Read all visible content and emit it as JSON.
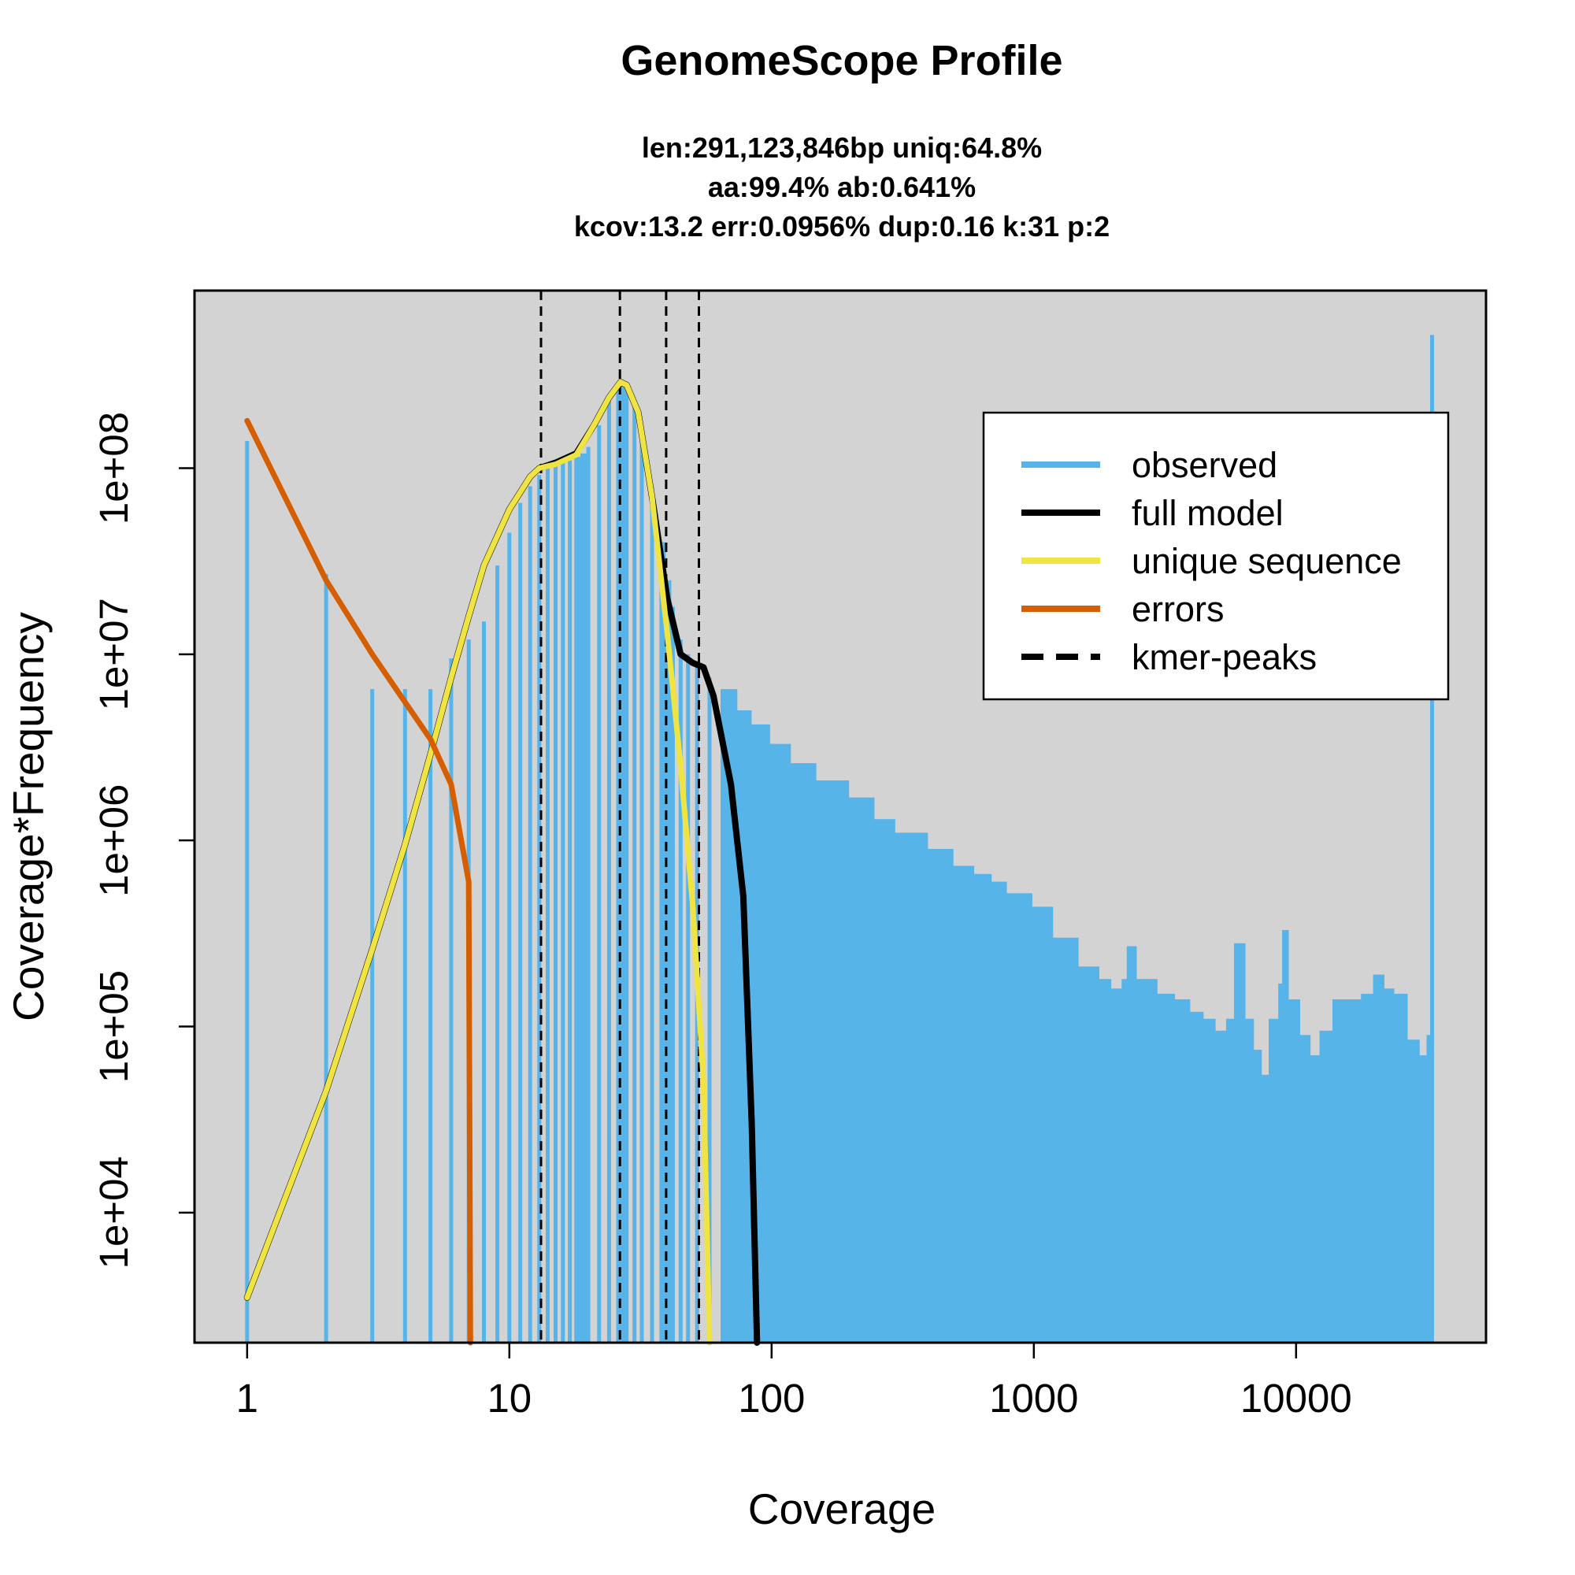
{
  "chart_data": {
    "type": "bar",
    "title": "GenomeScope Profile",
    "subtitle_lines": [
      "len:291,123,846bp uniq:64.8%",
      "aa:99.4% ab:0.641%",
      "kcov:13.2 err:0.0956%  dup:0.16  k:31 p:2"
    ],
    "xlabel": "Coverage",
    "ylabel": "Coverage*Frequency",
    "x_scale": "log",
    "y_scale": "log",
    "xlim": [
      0.63,
      53000
    ],
    "ylim": [
      2000,
      900000000
    ],
    "x_ticks": [
      1,
      10,
      100,
      1000,
      10000
    ],
    "x_tick_labels": [
      "1",
      "10",
      "100",
      "1000",
      "10000"
    ],
    "y_ticks": [
      10000,
      100000,
      1000000,
      10000000,
      100000000
    ],
    "y_tick_labels": [
      "1e+04",
      "1e+05",
      "1e+06",
      "1e+07",
      "1e+08"
    ],
    "background": "#d3d3d3",
    "grid": false,
    "legend_position": "top-right",
    "legend": [
      {
        "label": "observed",
        "color": "#56b4e9",
        "style": "solid"
      },
      {
        "label": "full model",
        "color": "#000000",
        "style": "solid"
      },
      {
        "label": "unique sequence",
        "color": "#f0e442",
        "style": "solid"
      },
      {
        "label": "errors",
        "color": "#d55e00",
        "style": "solid"
      },
      {
        "label": "kmer-peaks",
        "color": "#000000",
        "style": "dashed"
      }
    ],
    "series": [
      {
        "name": "observed",
        "type": "bar",
        "color": "#56b4e9",
        "points": [
          [
            1,
            140000000
          ],
          [
            2,
            27000000
          ],
          [
            3,
            6500000
          ],
          [
            4,
            6500000
          ],
          [
            5,
            6500000
          ],
          [
            6,
            9500000
          ],
          [
            7,
            12000000
          ],
          [
            8,
            15000000
          ],
          [
            9,
            30000000
          ],
          [
            10,
            45000000
          ],
          [
            11,
            65000000
          ],
          [
            12,
            80000000
          ],
          [
            13,
            92000000
          ],
          [
            14,
            100000000
          ],
          [
            15,
            105000000
          ],
          [
            16,
            108000000
          ],
          [
            17,
            110000000
          ],
          [
            18,
            115000000
          ],
          [
            19,
            120000000
          ],
          [
            20,
            130000000
          ],
          [
            22,
            170000000
          ],
          [
            24,
            230000000
          ],
          [
            26,
            280000000
          ],
          [
            27,
            290000000
          ],
          [
            28,
            280000000
          ],
          [
            30,
            230000000
          ],
          [
            32,
            160000000
          ],
          [
            35,
            80000000
          ],
          [
            38,
            40000000
          ],
          [
            40,
            25000000
          ],
          [
            42,
            18000000
          ],
          [
            45,
            12000000
          ],
          [
            48,
            10000000
          ],
          [
            52,
            8500000
          ],
          [
            58,
            7500000
          ],
          [
            65,
            6500000
          ],
          [
            75,
            5000000
          ],
          [
            85,
            4200000
          ],
          [
            100,
            3300000
          ],
          [
            120,
            2600000
          ],
          [
            150,
            2100000
          ],
          [
            200,
            1700000
          ],
          [
            250,
            1300000
          ],
          [
            300,
            1100000
          ],
          [
            400,
            900000
          ],
          [
            500,
            730000
          ],
          [
            600,
            660000
          ],
          [
            700,
            600000
          ],
          [
            800,
            520000
          ],
          [
            1000,
            440000
          ],
          [
            1200,
            300000
          ],
          [
            1500,
            210000
          ],
          [
            1800,
            180000
          ],
          [
            2000,
            160000
          ],
          [
            2200,
            180000
          ],
          [
            2300,
            270000
          ],
          [
            2500,
            180000
          ],
          [
            3000,
            150000
          ],
          [
            3500,
            140000
          ],
          [
            4000,
            120000
          ],
          [
            4500,
            110000
          ],
          [
            5000,
            95000
          ],
          [
            5500,
            110000
          ],
          [
            5900,
            280000
          ],
          [
            6500,
            110000
          ],
          [
            7000,
            75000
          ],
          [
            7500,
            55000
          ],
          [
            8000,
            110000
          ],
          [
            8700,
            170000
          ],
          [
            9000,
            330000
          ],
          [
            9500,
            140000
          ],
          [
            10500,
            90000
          ],
          [
            11500,
            70000
          ],
          [
            12500,
            95000
          ],
          [
            14000,
            140000
          ],
          [
            16000,
            140000
          ],
          [
            18000,
            150000
          ],
          [
            20000,
            190000
          ],
          [
            22000,
            160000
          ],
          [
            24000,
            150000
          ],
          [
            27000,
            85000
          ],
          [
            30000,
            70000
          ],
          [
            32000,
            90000
          ],
          [
            33000,
            520000000
          ]
        ]
      },
      {
        "name": "full model",
        "type": "line",
        "color": "#000000",
        "points": [
          [
            1,
            3500
          ],
          [
            2,
            45000
          ],
          [
            3,
            260000
          ],
          [
            4,
            950000
          ],
          [
            5,
            2900000
          ],
          [
            6,
            7500000
          ],
          [
            7,
            16000000
          ],
          [
            8,
            30000000
          ],
          [
            10,
            60000000
          ],
          [
            12,
            90000000
          ],
          [
            13,
            100000000
          ],
          [
            15,
            107000000
          ],
          [
            18,
            120000000
          ],
          [
            21,
            170000000
          ],
          [
            24,
            240000000
          ],
          [
            26.5,
            290000000
          ],
          [
            28,
            280000000
          ],
          [
            31,
            200000000
          ],
          [
            35,
            70000000
          ],
          [
            40,
            20000000
          ],
          [
            45,
            10000000
          ],
          [
            50,
            9000000
          ],
          [
            55,
            8500000
          ],
          [
            60,
            6000000
          ],
          [
            70,
            2000000
          ],
          [
            78,
            500000
          ],
          [
            84,
            30000
          ],
          [
            88,
            2000
          ]
        ]
      },
      {
        "name": "unique sequence",
        "type": "line",
        "color": "#f0e442",
        "points": [
          [
            1,
            3500
          ],
          [
            2,
            45000
          ],
          [
            3,
            260000
          ],
          [
            4,
            950000
          ],
          [
            5,
            2900000
          ],
          [
            6,
            7500000
          ],
          [
            7,
            16000000
          ],
          [
            8,
            30000000
          ],
          [
            10,
            60000000
          ],
          [
            12,
            90000000
          ],
          [
            13,
            100000000
          ],
          [
            15,
            105000000
          ],
          [
            18,
            118000000
          ],
          [
            21,
            170000000
          ],
          [
            24,
            240000000
          ],
          [
            26.5,
            290000000
          ],
          [
            28,
            280000000
          ],
          [
            31,
            200000000
          ],
          [
            35,
            70000000
          ],
          [
            40,
            13000000
          ],
          [
            45,
            2500000
          ],
          [
            50,
            450000
          ],
          [
            55,
            50000
          ],
          [
            58,
            2000
          ]
        ]
      },
      {
        "name": "errors",
        "type": "line",
        "color": "#d55e00",
        "points": [
          [
            1,
            180000000
          ],
          [
            2,
            25000000
          ],
          [
            3,
            10000000
          ],
          [
            5,
            3500000
          ],
          [
            6,
            2000000
          ],
          [
            7,
            600000
          ],
          [
            7.1,
            2000
          ]
        ]
      }
    ],
    "kmer_peaks": [
      13.2,
      26.4,
      39.6,
      52.8
    ]
  }
}
